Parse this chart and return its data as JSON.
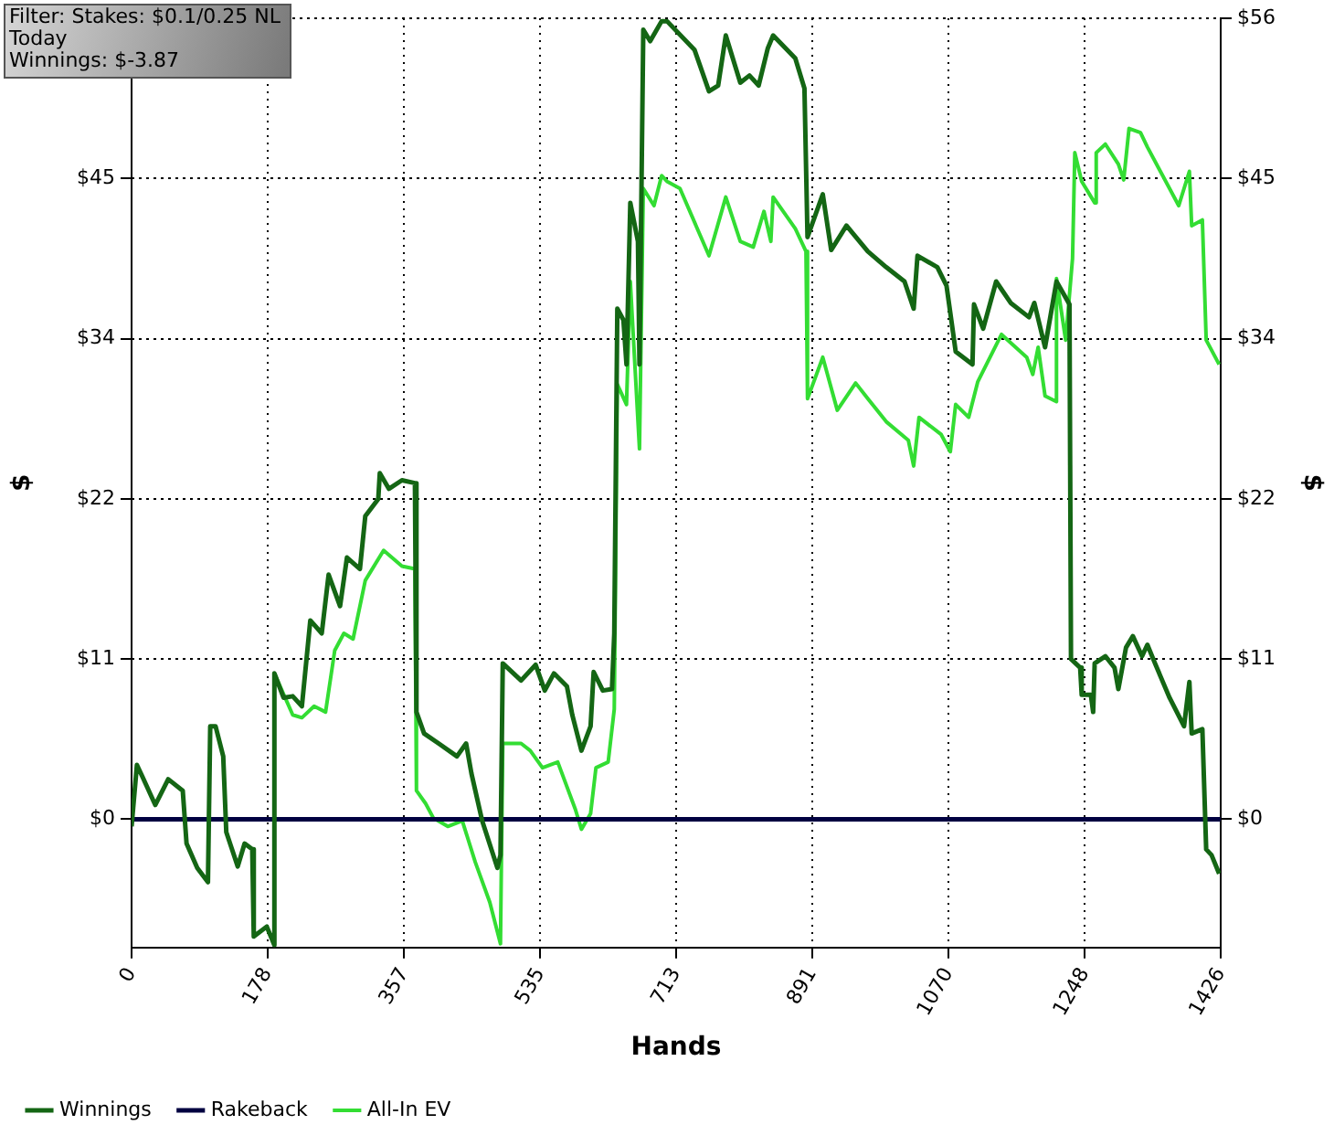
{
  "chart_data": {
    "type": "line",
    "xlabel": "Hands",
    "ylabel": "$",
    "y2label": "$",
    "annotations": [
      "Filter: Stakes: $0.1/0.25 NL",
      "Today",
      "Winnings: $-3.87"
    ],
    "xlim": [
      0,
      1426
    ],
    "xticks": [
      0,
      178,
      357,
      535,
      713,
      891,
      1070,
      1248,
      1426
    ],
    "ylim": [
      -8.96,
      56
    ],
    "yticks": [
      {
        "value": 0,
        "label": "$0"
      },
      {
        "value": 11.2,
        "label": "$11"
      },
      {
        "value": 22.4,
        "label": "$22"
      },
      {
        "value": 33.6,
        "label": "$34"
      },
      {
        "value": 44.8,
        "label": "$45"
      },
      {
        "value": 56,
        "label": null
      }
    ],
    "y2lim": [
      -8.96,
      56
    ],
    "y2ticks": [
      {
        "value": 0,
        "label": "$0"
      },
      {
        "value": 11.2,
        "label": "$11"
      },
      {
        "value": 22.4,
        "label": "$22"
      },
      {
        "value": 33.6,
        "label": "$34"
      },
      {
        "value": 44.8,
        "label": "$45"
      },
      {
        "value": 56,
        "label": "$56"
      }
    ],
    "grid": true,
    "legend": "bottom left",
    "marker": "none",
    "line_style": "solid",
    "series": [
      {
        "name": "Winnings",
        "color": "#146614",
        "x": [
          0,
          7,
          14,
          31,
          48,
          67,
          72,
          86,
          100,
          103,
          110,
          120,
          124,
          139,
          148,
          158,
          160,
          177,
          187,
          187,
          199,
          211,
          223,
          234,
          249,
          258,
          273,
          282,
          299,
          306,
          323,
          325,
          337,
          354,
          371,
          373,
          383,
          402,
          426,
          438,
          445,
          459,
          479,
          483,
          486,
          510,
          529,
          541,
          553,
          570,
          577,
          589,
          601,
          605,
          617,
          629,
          632,
          636,
          644,
          648,
          653,
          663,
          665,
          670,
          679,
          694,
          701,
          737,
          756,
          768,
          778,
          797,
          809,
          821,
          833,
          840,
          869,
          881,
          885,
          905,
          916,
          936,
          964,
          988,
          1012,
          1024,
          1029,
          1055,
          1067,
          1079,
          1101,
          1103,
          1115,
          1132,
          1151,
          1175,
          1182,
          1196,
          1211,
          1228,
          1230,
          1242,
          1244,
          1256,
          1259,
          1261,
          1275,
          1287,
          1292,
          1302,
          1311,
          1323,
          1330,
          1340,
          1359,
          1378,
          1385,
          1388,
          1402,
          1407,
          1414,
          1424
        ],
        "values": [
          -0.5,
          3.8,
          3.0,
          1.0,
          2.8,
          2.0,
          -1.7,
          -3.4,
          -4.4,
          6.5,
          6.5,
          4.4,
          -0.9,
          -3.3,
          -1.7,
          -2.1,
          -8.2,
          -7.5,
          -8.8,
          10.2,
          8.5,
          8.6,
          7.9,
          13.9,
          13.0,
          17.1,
          14.9,
          18.3,
          17.5,
          21.2,
          22.4,
          24.2,
          23.1,
          23.7,
          23.5,
          7.5,
          6.0,
          5.3,
          4.4,
          5.3,
          3.2,
          -0.1,
          -3.4,
          -2.5,
          10.9,
          9.7,
          10.8,
          9.0,
          10.2,
          9.3,
          7.3,
          4.8,
          6.5,
          10.3,
          9.0,
          9.1,
          13.0,
          35.7,
          34.9,
          31.8,
          43.1,
          40.4,
          31.8,
          55.2,
          54.4,
          55.8,
          55.8,
          53.8,
          50.9,
          51.3,
          54.8,
          51.5,
          52.0,
          51.3,
          53.9,
          54.8,
          53.2,
          51.1,
          40.7,
          43.7,
          39.8,
          41.5,
          39.7,
          38.6,
          37.6,
          35.7,
          39.4,
          38.6,
          37.3,
          32.7,
          31.8,
          36.0,
          34.3,
          37.6,
          36.1,
          35.1,
          36.1,
          33.0,
          37.6,
          36.0,
          11.2,
          10.6,
          8.7,
          8.7,
          7.5,
          10.9,
          11.4,
          10.6,
          9.1,
          12.0,
          12.8,
          11.4,
          12.2,
          10.9,
          8.5,
          6.5,
          9.6,
          6.0,
          6.3,
          -2.1,
          -2.5,
          -3.8
        ]
      },
      {
        "name": "Rakeback",
        "color": "#000040",
        "x": [
          0,
          1426
        ],
        "values": [
          0,
          0
        ]
      },
      {
        "name": "All-In EV",
        "color": "#33dd33",
        "x": [
          187,
          211,
          223,
          239,
          254,
          266,
          278,
          290,
          306,
          330,
          354,
          371,
          373,
          385,
          395,
          414,
          433,
          450,
          469,
          483,
          486,
          510,
          522,
          538,
          558,
          581,
          589,
          601,
          608,
          624,
          632,
          636,
          648,
          653,
          665,
          670,
          684,
          694,
          701,
          718,
          756,
          778,
          797,
          814,
          828,
          837,
          840,
          869,
          883,
          885,
          905,
          924,
          948,
          964,
          988,
          1017,
          1024,
          1031,
          1060,
          1072,
          1079,
          1096,
          1108,
          1139,
          1172,
          1180,
          1187,
          1196,
          1211,
          1211,
          1223,
          1232,
          1235,
          1244,
          1261,
          1263,
          1275,
          1292,
          1299,
          1306,
          1321,
          1330,
          1347,
          1371,
          1385,
          1388,
          1402,
          1407,
          1424
        ],
        "values": [
          10.2,
          7.3,
          7.1,
          7.9,
          7.5,
          11.8,
          13.0,
          12.6,
          16.7,
          18.8,
          17.7,
          17.5,
          2.0,
          1.1,
          0.1,
          -0.5,
          -0.1,
          -3.0,
          -5.8,
          -8.7,
          5.3,
          5.3,
          4.8,
          3.6,
          4.0,
          0.7,
          -0.7,
          0.4,
          3.6,
          4.0,
          7.7,
          30.4,
          29.0,
          37.6,
          25.9,
          44.1,
          42.9,
          45.0,
          44.6,
          44.1,
          39.4,
          43.5,
          40.4,
          40.0,
          42.5,
          40.4,
          43.5,
          41.3,
          39.7,
          29.4,
          32.3,
          28.6,
          30.5,
          29.4,
          27.8,
          26.5,
          24.7,
          28.1,
          26.9,
          25.7,
          29.0,
          28.1,
          30.6,
          33.9,
          32.3,
          31.1,
          33.0,
          29.6,
          29.2,
          37.8,
          33.5,
          39.2,
          46.6,
          44.6,
          43.1,
          46.6,
          47.2,
          45.8,
          44.7,
          48.3,
          48.0,
          47.0,
          45.3,
          42.9,
          45.3,
          41.5,
          41.9,
          33.5,
          31.8
        ]
      }
    ]
  }
}
